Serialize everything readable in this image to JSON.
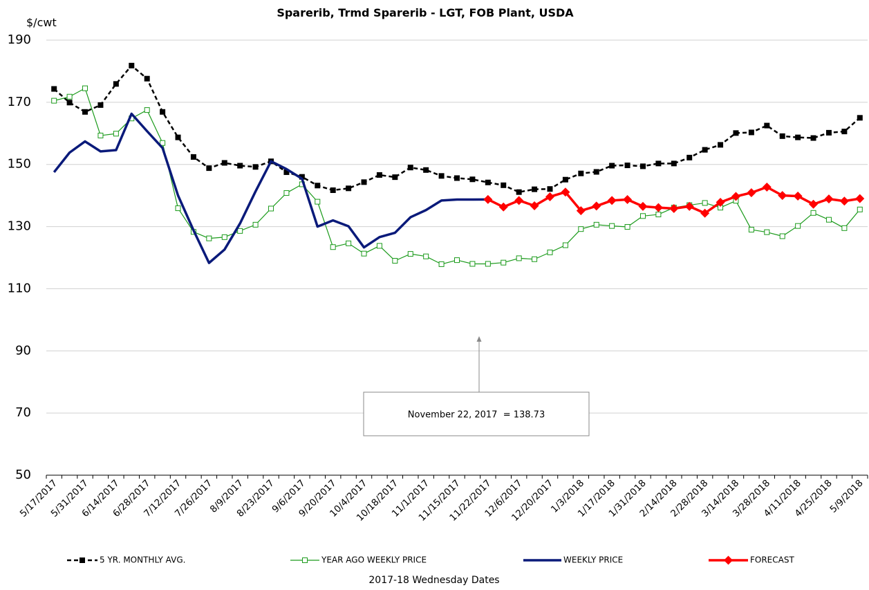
{
  "chart_data": {
    "type": "line",
    "title": "Sparerib, Trmd Sparerib - LGT, FOB Plant, USDA",
    "ylabel": "$/cwt",
    "xlabel": "2017-18 Wednesday Dates",
    "categories": [
      "5/17/2017",
      null,
      "5/31/2017",
      null,
      "6/14/2017",
      null,
      "6/28/2017",
      null,
      "7/12/2017",
      null,
      "7/26/2017",
      null,
      "8/9/2017",
      null,
      "8/23/2017",
      null,
      "9/6/2017",
      null,
      "9/20/2017",
      null,
      "10/4/2017",
      null,
      "10/18/2017",
      null,
      "11/1/2017",
      null,
      "11/15/2017",
      null,
      "11/22/2017",
      null,
      "12/6/2017",
      null,
      "12/20/2017",
      null,
      "1/3/2018",
      null,
      "1/17/2018",
      null,
      "1/31/2018",
      null,
      "2/14/2018",
      null,
      "2/28/2018",
      null,
      "3/14/2018",
      null,
      "3/28/2018",
      null,
      "4/11/2018",
      null,
      "4/25/2018",
      null,
      "5/9/2018"
    ],
    "ylim": [
      50,
      190
    ],
    "yticks": [
      50,
      70,
      90,
      110,
      130,
      150,
      170,
      190
    ],
    "grid": true,
    "legend": "bottom",
    "series": [
      {
        "name": "5 YR. MONTHLY AVG.",
        "color": "#000000",
        "marker": "square",
        "dashed": true,
        "values": [
          174.3,
          169.9,
          166.9,
          169.1,
          175.9,
          181.8,
          177.6,
          166.9,
          158.7,
          152.4,
          148.8,
          150.5,
          149.6,
          149.2,
          151.0,
          147.5,
          146.0,
          143.2,
          141.7,
          142.3,
          144.3,
          146.6,
          145.9,
          149.0,
          148.2,
          146.3,
          145.6,
          145.2,
          144.2,
          143.3,
          141.1,
          142.0,
          142.1,
          145.1,
          147.1,
          147.6,
          149.6,
          149.7,
          149.4,
          150.3,
          150.3,
          152.2,
          154.7,
          156.3,
          160.1,
          160.3,
          162.5,
          159.1,
          158.7,
          158.5,
          160.2,
          160.6,
          165.0
        ]
      },
      {
        "name": "YEAR AGO WEEKLY PRICE",
        "color": "#1a9a1a",
        "marker": "hollow-square",
        "dashed": false,
        "values": [
          170.5,
          171.8,
          174.5,
          159.3,
          159.9,
          164.8,
          167.5,
          156.9,
          135.9,
          128.3,
          126.2,
          126.6,
          128.6,
          130.6,
          135.8,
          140.8,
          143.6,
          138.0,
          123.4,
          124.6,
          121.3,
          123.8,
          119.0,
          121.2,
          120.4,
          117.9,
          119.2,
          118.0,
          118.0,
          118.4,
          119.8,
          119.5,
          121.7,
          124.0,
          129.2,
          130.6,
          130.2,
          129.9,
          133.4,
          133.9,
          136.1,
          136.9,
          137.6,
          136.1,
          138.3,
          129.0,
          128.2,
          126.9,
          130.2,
          134.4,
          132.2,
          129.5,
          135.5
        ]
      },
      {
        "name": "WEEKLY PRICE",
        "color": "#0a1a7a",
        "marker": "none",
        "dashed": false,
        "values": [
          147.5,
          153.8,
          157.4,
          154.2,
          154.6,
          166.3,
          160.7,
          155.3,
          140.0,
          128.8,
          118.3,
          122.6,
          131.0,
          141.3,
          151.0,
          148.5,
          145.4,
          130.0,
          132.0,
          130.1,
          123.3,
          126.6,
          128.0,
          133.0,
          135.3,
          138.4,
          138.7,
          138.7,
          138.73,
          null,
          null,
          null,
          null,
          null,
          null,
          null,
          null,
          null,
          null,
          null,
          null,
          null,
          null,
          null,
          null,
          null,
          null,
          null,
          null,
          null,
          null,
          null,
          null
        ]
      },
      {
        "name": "FORECAST",
        "color": "#ff0000",
        "marker": "diamond",
        "dashed": false,
        "values": [
          null,
          null,
          null,
          null,
          null,
          null,
          null,
          null,
          null,
          null,
          null,
          null,
          null,
          null,
          null,
          null,
          null,
          null,
          null,
          null,
          null,
          null,
          null,
          null,
          null,
          null,
          null,
          null,
          138.73,
          136.3,
          138.4,
          136.7,
          139.6,
          141.1,
          135.1,
          136.6,
          138.4,
          138.7,
          136.5,
          136.1,
          135.8,
          136.5,
          134.3,
          137.8,
          139.7,
          140.9,
          142.7,
          140.0,
          139.8,
          137.2,
          138.9,
          138.2,
          139.0
        ]
      }
    ],
    "annotations": [
      {
        "text": "November 22, 2017  = 138.73"
      }
    ]
  }
}
